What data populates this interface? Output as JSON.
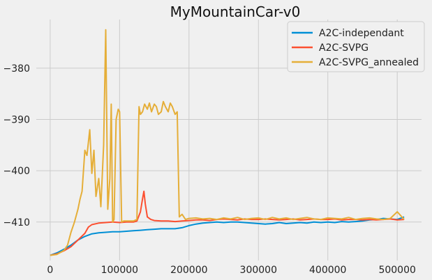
{
  "chart_data": {
    "type": "line",
    "title": "MyMountainCar-v0",
    "xlabel": "",
    "ylabel": "",
    "xlim": [
      -20000,
      535000
    ],
    "ylim": [
      -417.5,
      -370.5
    ],
    "xticks": [
      0,
      100000,
      200000,
      300000,
      400000,
      500000
    ],
    "yticks": [
      -410,
      -400,
      -390,
      -380
    ],
    "grid": true,
    "legend_position": "top-right",
    "background": "#f0f0f0",
    "grid_color": "#cbcbcb",
    "series": [
      {
        "name": "A2C-independant",
        "color": "#008fd5",
        "x": [
          0,
          10000,
          20000,
          30000,
          40000,
          50000,
          60000,
          70000,
          80000,
          90000,
          100000,
          110000,
          120000,
          130000,
          140000,
          150000,
          160000,
          170000,
          180000,
          190000,
          200000,
          210000,
          220000,
          230000,
          240000,
          250000,
          260000,
          270000,
          280000,
          290000,
          300000,
          310000,
          320000,
          330000,
          340000,
          350000,
          360000,
          370000,
          380000,
          390000,
          400000,
          410000,
          420000,
          430000,
          440000,
          450000,
          460000,
          470000,
          480000,
          490000,
          500000,
          510000
        ],
        "y": [
          -416.5,
          -416.0,
          -415.3,
          -414.5,
          -413.5,
          -412.8,
          -412.3,
          -412.1,
          -412.0,
          -411.9,
          -411.9,
          -411.8,
          -411.7,
          -411.6,
          -411.5,
          -411.4,
          -411.3,
          -411.3,
          -411.3,
          -411.1,
          -410.7,
          -410.4,
          -410.2,
          -410.1,
          -410.0,
          -410.1,
          -410.0,
          -410.0,
          -410.1,
          -410.2,
          -410.3,
          -410.4,
          -410.3,
          -410.1,
          -410.3,
          -410.2,
          -410.1,
          -410.2,
          -410.0,
          -410.1,
          -410.0,
          -410.1,
          -409.9,
          -410.0,
          -409.9,
          -409.8,
          -409.6,
          -409.5,
          -409.3,
          -409.4,
          -409.5,
          -409.0
        ]
      },
      {
        "name": "A2C-SVPG",
        "color": "#fc4f30",
        "x": [
          0,
          10000,
          20000,
          30000,
          40000,
          50000,
          55000,
          60000,
          70000,
          80000,
          90000,
          100000,
          110000,
          120000,
          125000,
          130000,
          133000,
          135000,
          137000,
          140000,
          145000,
          150000,
          160000,
          170000,
          180000,
          190000,
          200000,
          210000,
          220000,
          230000,
          240000,
          250000,
          260000,
          270000,
          280000,
          290000,
          300000,
          310000,
          320000,
          330000,
          340000,
          350000,
          360000,
          370000,
          380000,
          390000,
          400000,
          410000,
          420000,
          430000,
          440000,
          450000,
          460000,
          470000,
          480000,
          490000,
          500000,
          510000
        ],
        "y": [
          -416.5,
          -416.2,
          -415.6,
          -414.8,
          -413.5,
          -412.2,
          -411.0,
          -410.5,
          -410.2,
          -410.1,
          -410.0,
          -410.1,
          -410.0,
          -410.0,
          -409.8,
          -408.0,
          -405.5,
          -404.0,
          -406.5,
          -409.0,
          -409.5,
          -409.7,
          -409.8,
          -409.8,
          -409.9,
          -409.8,
          -409.7,
          -409.6,
          -409.6,
          -409.7,
          -409.5,
          -409.4,
          -409.5,
          -409.6,
          -409.4,
          -409.5,
          -409.5,
          -409.4,
          -409.5,
          -409.6,
          -409.5,
          -409.4,
          -409.6,
          -409.5,
          -409.4,
          -409.5,
          -409.5,
          -409.4,
          -409.6,
          -409.5,
          -409.5,
          -409.6,
          -409.5,
          -409.6,
          -409.5,
          -409.4,
          -409.6,
          -409.5
        ]
      },
      {
        "name": "A2C-SVPG_annealed",
        "color": "#e5ae38",
        "x": [
          0,
          10000,
          20000,
          25000,
          30000,
          35000,
          40000,
          43000,
          46000,
          50000,
          53000,
          57000,
          60000,
          63000,
          66000,
          70000,
          73000,
          77000,
          80000,
          83000,
          86000,
          88000,
          90000,
          92000,
          95000,
          98000,
          100000,
          103000,
          106000,
          110000,
          115000,
          120000,
          125000,
          128000,
          130000,
          133000,
          136000,
          140000,
          143000,
          146000,
          150000,
          153000,
          156000,
          160000,
          163000,
          166000,
          170000,
          173000,
          176000,
          180000,
          183000,
          186000,
          190000,
          195000,
          200000,
          210000,
          220000,
          230000,
          240000,
          250000,
          260000,
          270000,
          280000,
          290000,
          300000,
          310000,
          320000,
          330000,
          340000,
          350000,
          360000,
          370000,
          380000,
          390000,
          400000,
          410000,
          420000,
          430000,
          440000,
          450000,
          460000,
          470000,
          480000,
          490000,
          500000,
          510000
        ],
        "y": [
          -416.5,
          -416.3,
          -415.5,
          -414.5,
          -412.0,
          -410.0,
          -407.5,
          -405.5,
          -404.0,
          -396.0,
          -397.0,
          -392.0,
          -400.5,
          -396.0,
          -405.0,
          -401.5,
          -407.0,
          -395.0,
          -372.5,
          -407.5,
          -401.5,
          -387.0,
          -410.0,
          -409.5,
          -390.0,
          -388.0,
          -388.5,
          -410.0,
          -409.8,
          -409.8,
          -409.8,
          -409.8,
          -409.5,
          -387.5,
          -389.0,
          -388.5,
          -387.0,
          -388.0,
          -386.8,
          -388.5,
          -387.0,
          -387.5,
          -389.0,
          -388.5,
          -386.5,
          -387.5,
          -388.5,
          -386.8,
          -387.5,
          -389.0,
          -388.5,
          -409.0,
          -408.5,
          -409.5,
          -409.3,
          -409.2,
          -409.4,
          -409.3,
          -409.5,
          -409.2,
          -409.4,
          -409.1,
          -409.5,
          -409.3,
          -409.2,
          -409.5,
          -409.1,
          -409.4,
          -409.2,
          -409.5,
          -409.3,
          -409.1,
          -409.4,
          -409.5,
          -409.2,
          -409.3,
          -409.4,
          -409.1,
          -409.5,
          -409.3,
          -409.2,
          -409.4,
          -409.5,
          -409.3,
          -408.0,
          -409.5
        ]
      }
    ]
  }
}
